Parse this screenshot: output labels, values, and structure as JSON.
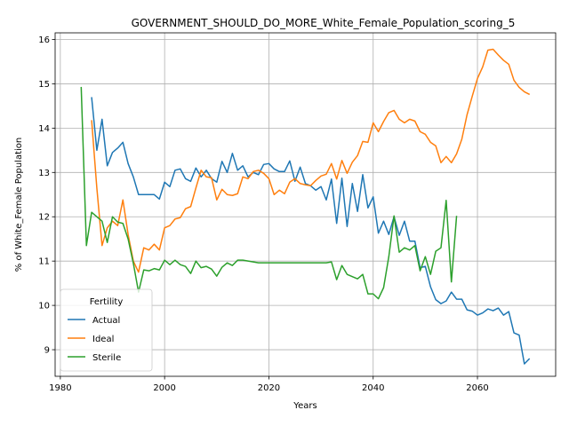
{
  "chart_data": {
    "type": "line",
    "title": "GOVERNMENT_SHOULD_DO_MORE_White_Female_Population_scoring_5",
    "xlabel": "Years",
    "ylabel": "% of White_Female Population",
    "xlim": [
      1979,
      2075
    ],
    "ylim": [
      8.4,
      16.15
    ],
    "xticks": [
      1980,
      2000,
      2020,
      2040,
      2060
    ],
    "yticks": [
      9,
      10,
      11,
      12,
      13,
      14,
      15,
      16
    ],
    "grid": true,
    "legend": {
      "title": "Fertility",
      "position": "bottom-left"
    },
    "series": [
      {
        "name": "Actual",
        "color": "#1f77b4",
        "x": [
          1986,
          1987,
          1988,
          1989,
          1990,
          1991,
          1992,
          1993,
          1994,
          1995,
          1996,
          1997,
          1998,
          1999,
          2000,
          2001,
          2002,
          2003,
          2004,
          2005,
          2006,
          2007,
          2008,
          2009,
          2010,
          2011,
          2012,
          2013,
          2014,
          2015,
          2016,
          2017,
          2018,
          2019,
          2020,
          2021,
          2022,
          2023,
          2024,
          2025,
          2026,
          2027,
          2028,
          2029,
          2030,
          2031,
          2032,
          2033,
          2034,
          2035,
          2036,
          2037,
          2038,
          2039,
          2040,
          2041,
          2042,
          2043,
          2044,
          2045,
          2046,
          2047,
          2048,
          2049,
          2050,
          2051,
          2052,
          2053,
          2054,
          2055,
          2056,
          2057,
          2058,
          2059,
          2060,
          2061,
          2062,
          2063,
          2064,
          2065,
          2066,
          2067,
          2068,
          2069,
          2070
        ],
        "values": [
          14.7,
          13.5,
          14.2,
          13.15,
          13.45,
          13.55,
          13.68,
          13.2,
          12.9,
          12.5,
          12.5,
          12.5,
          12.5,
          12.4,
          12.78,
          12.68,
          13.05,
          13.08,
          12.86,
          12.8,
          13.1,
          12.9,
          13.05,
          12.86,
          12.78,
          13.25,
          13.0,
          13.43,
          13.05,
          13.15,
          12.9,
          13.0,
          12.95,
          13.18,
          13.2,
          13.08,
          13.02,
          13.02,
          13.26,
          12.8,
          13.12,
          12.75,
          12.7,
          12.6,
          12.68,
          12.38,
          12.85,
          11.85,
          12.87,
          11.78,
          12.75,
          12.12,
          12.95,
          12.2,
          12.45,
          11.63,
          11.9,
          11.6,
          12.0,
          11.58,
          11.9,
          11.45,
          11.45,
          10.85,
          10.88,
          10.42,
          10.13,
          10.04,
          10.1,
          10.3,
          10.14,
          10.14,
          9.9,
          9.87,
          9.78,
          9.83,
          9.92,
          9.88,
          9.94,
          9.78,
          9.86,
          9.38,
          9.33,
          8.68,
          8.8
        ]
      },
      {
        "name": "Ideal",
        "color": "#ff7f0e",
        "x": [
          1986,
          1987,
          1988,
          1989,
          1990,
          1991,
          1992,
          1993,
          1994,
          1995,
          1996,
          1997,
          1998,
          1999,
          2000,
          2001,
          2002,
          2003,
          2004,
          2005,
          2006,
          2007,
          2008,
          2009,
          2010,
          2011,
          2012,
          2013,
          2014,
          2015,
          2016,
          2017,
          2018,
          2019,
          2020,
          2021,
          2022,
          2023,
          2024,
          2025,
          2026,
          2027,
          2028,
          2029,
          2030,
          2031,
          2032,
          2033,
          2034,
          2035,
          2036,
          2037,
          2038,
          2039,
          2040,
          2041,
          2042,
          2043,
          2044,
          2045,
          2046,
          2047,
          2048,
          2049,
          2050,
          2051,
          2052,
          2053,
          2054,
          2055,
          2056,
          2057,
          2058,
          2059,
          2060,
          2061,
          2062,
          2063,
          2064,
          2065,
          2066,
          2067,
          2068,
          2069,
          2070
        ],
        "values": [
          14.18,
          12.65,
          11.35,
          11.75,
          11.9,
          11.8,
          12.38,
          11.6,
          11.0,
          10.75,
          11.3,
          11.25,
          11.38,
          11.25,
          11.75,
          11.8,
          11.95,
          11.98,
          12.18,
          12.23,
          12.65,
          13.05,
          12.9,
          12.88,
          12.38,
          12.62,
          12.5,
          12.48,
          12.52,
          12.9,
          12.86,
          13.02,
          13.05,
          12.98,
          12.86,
          12.5,
          12.6,
          12.52,
          12.78,
          12.86,
          12.75,
          12.72,
          12.7,
          12.82,
          12.92,
          12.96,
          13.2,
          12.85,
          13.27,
          12.98,
          13.23,
          13.38,
          13.7,
          13.68,
          14.12,
          13.92,
          14.15,
          14.35,
          14.4,
          14.2,
          14.12,
          14.2,
          14.16,
          13.92,
          13.86,
          13.68,
          13.6,
          13.22,
          13.36,
          13.22,
          13.42,
          13.75,
          14.3,
          14.72,
          15.12,
          15.38,
          15.76,
          15.78,
          15.65,
          15.53,
          15.44,
          15.08,
          14.92,
          14.82,
          14.76
        ]
      },
      {
        "name": "Sterile",
        "color": "#2ca02c",
        "x": [
          1984,
          1985,
          1986,
          1987,
          1988,
          1989,
          1990,
          1991,
          1992,
          1993,
          1994,
          1995,
          1996,
          1997,
          1998,
          1999,
          2000,
          2001,
          2002,
          2003,
          2004,
          2005,
          2006,
          2007,
          2008,
          2009,
          2010,
          2011,
          2012,
          2013,
          2014,
          2015,
          2016,
          2017,
          2018,
          2019,
          2020,
          2021,
          2022,
          2023,
          2024,
          2025,
          2026,
          2027,
          2028,
          2029,
          2030,
          2031,
          2032,
          2033,
          2034,
          2035,
          2036,
          2037,
          2038,
          2039,
          2040,
          2041,
          2042,
          2043,
          2044,
          2045,
          2046,
          2047,
          2048,
          2049,
          2050,
          2051,
          2052,
          2053,
          2054,
          2055,
          2056
        ],
        "values": [
          14.93,
          11.35,
          12.1,
          12.0,
          11.9,
          11.42,
          12.0,
          11.88,
          11.85,
          11.5,
          10.95,
          10.3,
          10.8,
          10.78,
          10.83,
          10.8,
          11.02,
          10.92,
          11.02,
          10.92,
          10.88,
          10.72,
          11.0,
          10.85,
          10.88,
          10.82,
          10.66,
          10.86,
          10.96,
          10.9,
          11.02,
          11.02,
          11.0,
          10.98,
          10.96,
          10.96,
          10.96,
          10.96,
          10.96,
          10.96,
          10.96,
          10.96,
          10.96,
          10.96,
          10.96,
          10.96,
          10.96,
          10.96,
          10.98,
          10.58,
          10.9,
          10.7,
          10.65,
          10.6,
          10.7,
          10.26,
          10.26,
          10.15,
          10.4,
          11.1,
          12.02,
          11.2,
          11.3,
          11.25,
          11.35,
          10.78,
          11.1,
          10.7,
          11.22,
          11.3,
          12.37,
          10.53,
          12.02
        ]
      }
    ]
  }
}
